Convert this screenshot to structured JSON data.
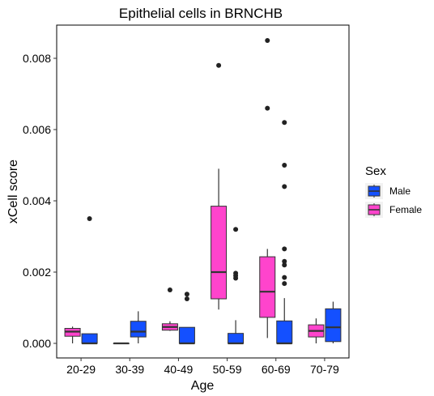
{
  "chart_data": {
    "type": "boxplot",
    "title": "Epithelial cells in BRNCHB",
    "xlabel": "Age",
    "ylabel": "xCell score",
    "categories": [
      "20-29",
      "30-39",
      "40-49",
      "50-59",
      "60-69",
      "70-79"
    ],
    "ylim": [
      -0.00045,
      0.0089
    ],
    "yticks": [
      {
        "value": 0.0,
        "label": "0.000"
      },
      {
        "value": 0.002,
        "label": "0.002"
      },
      {
        "value": 0.004,
        "label": "0.004"
      },
      {
        "value": 0.006,
        "label": "0.006"
      },
      {
        "value": 0.008,
        "label": "0.008"
      }
    ],
    "grid": false,
    "legend": {
      "title": "Sex",
      "position": "right",
      "entries": [
        {
          "name": "Male",
          "color": "#1450ff"
        },
        {
          "name": "Female",
          "color": "#ff44cc"
        }
      ]
    },
    "series": [
      {
        "name": "Female",
        "color": "#ff44cc",
        "boxes": [
          {
            "category": "20-29",
            "min": 0.0,
            "q1": 0.0002,
            "median": 0.00033,
            "q3": 0.00042,
            "max": 0.00047,
            "outliers": []
          },
          {
            "category": "30-39",
            "min": 0.0,
            "q1": 0.0,
            "median": 0.0,
            "q3": 0.0,
            "max": 0.0,
            "outliers": []
          },
          {
            "category": "40-49",
            "min": 0.00035,
            "q1": 0.00037,
            "median": 0.00046,
            "q3": 0.00055,
            "max": 0.00062,
            "outliers": [
              0.0015
            ]
          },
          {
            "category": "50-59",
            "min": 0.00095,
            "q1": 0.00125,
            "median": 0.002,
            "q3": 0.00385,
            "max": 0.0049,
            "outliers": [
              0.0078
            ]
          },
          {
            "category": "60-69",
            "min": 0.00015,
            "q1": 0.00073,
            "median": 0.00145,
            "q3": 0.00243,
            "max": 0.00265,
            "outliers": [
              0.0085,
              0.0066
            ]
          },
          {
            "category": "70-79",
            "min": 0.0,
            "q1": 0.00018,
            "median": 0.00035,
            "q3": 0.00052,
            "max": 0.0007,
            "outliers": []
          }
        ]
      },
      {
        "name": "Male",
        "color": "#1450ff",
        "boxes": [
          {
            "category": "20-29",
            "min": 0.0,
            "q1": 0.0,
            "median": 0.0,
            "q3": 0.00027,
            "max": 0.00027,
            "outliers": [
              0.0035
            ]
          },
          {
            "category": "30-39",
            "min": 0.0,
            "q1": 0.00018,
            "median": 0.00033,
            "q3": 0.00062,
            "max": 0.0009,
            "outliers": []
          },
          {
            "category": "40-49",
            "min": 0.0,
            "q1": 0.0,
            "median": 0.0,
            "q3": 0.00045,
            "max": 0.00045,
            "outliers": [
              0.00138,
              0.00125
            ]
          },
          {
            "category": "50-59",
            "min": 0.0,
            "q1": 0.0,
            "median": 0.0,
            "q3": 0.00028,
            "max": 0.00065,
            "outliers": [
              0.0032,
              0.00197,
              0.0019,
              0.00183
            ]
          },
          {
            "category": "60-69",
            "min": 0.0,
            "q1": 0.0,
            "median": 0.0,
            "q3": 0.00063,
            "max": 0.00127,
            "outliers": [
              0.0062,
              0.005,
              0.0044,
              0.00265,
              0.0023,
              0.0022,
              0.00185,
              0.00168
            ]
          },
          {
            "category": "70-79",
            "min": 0.0,
            "q1": 5e-05,
            "median": 0.00045,
            "q3": 0.00097,
            "max": 0.00117,
            "outliers": []
          }
        ]
      }
    ]
  }
}
